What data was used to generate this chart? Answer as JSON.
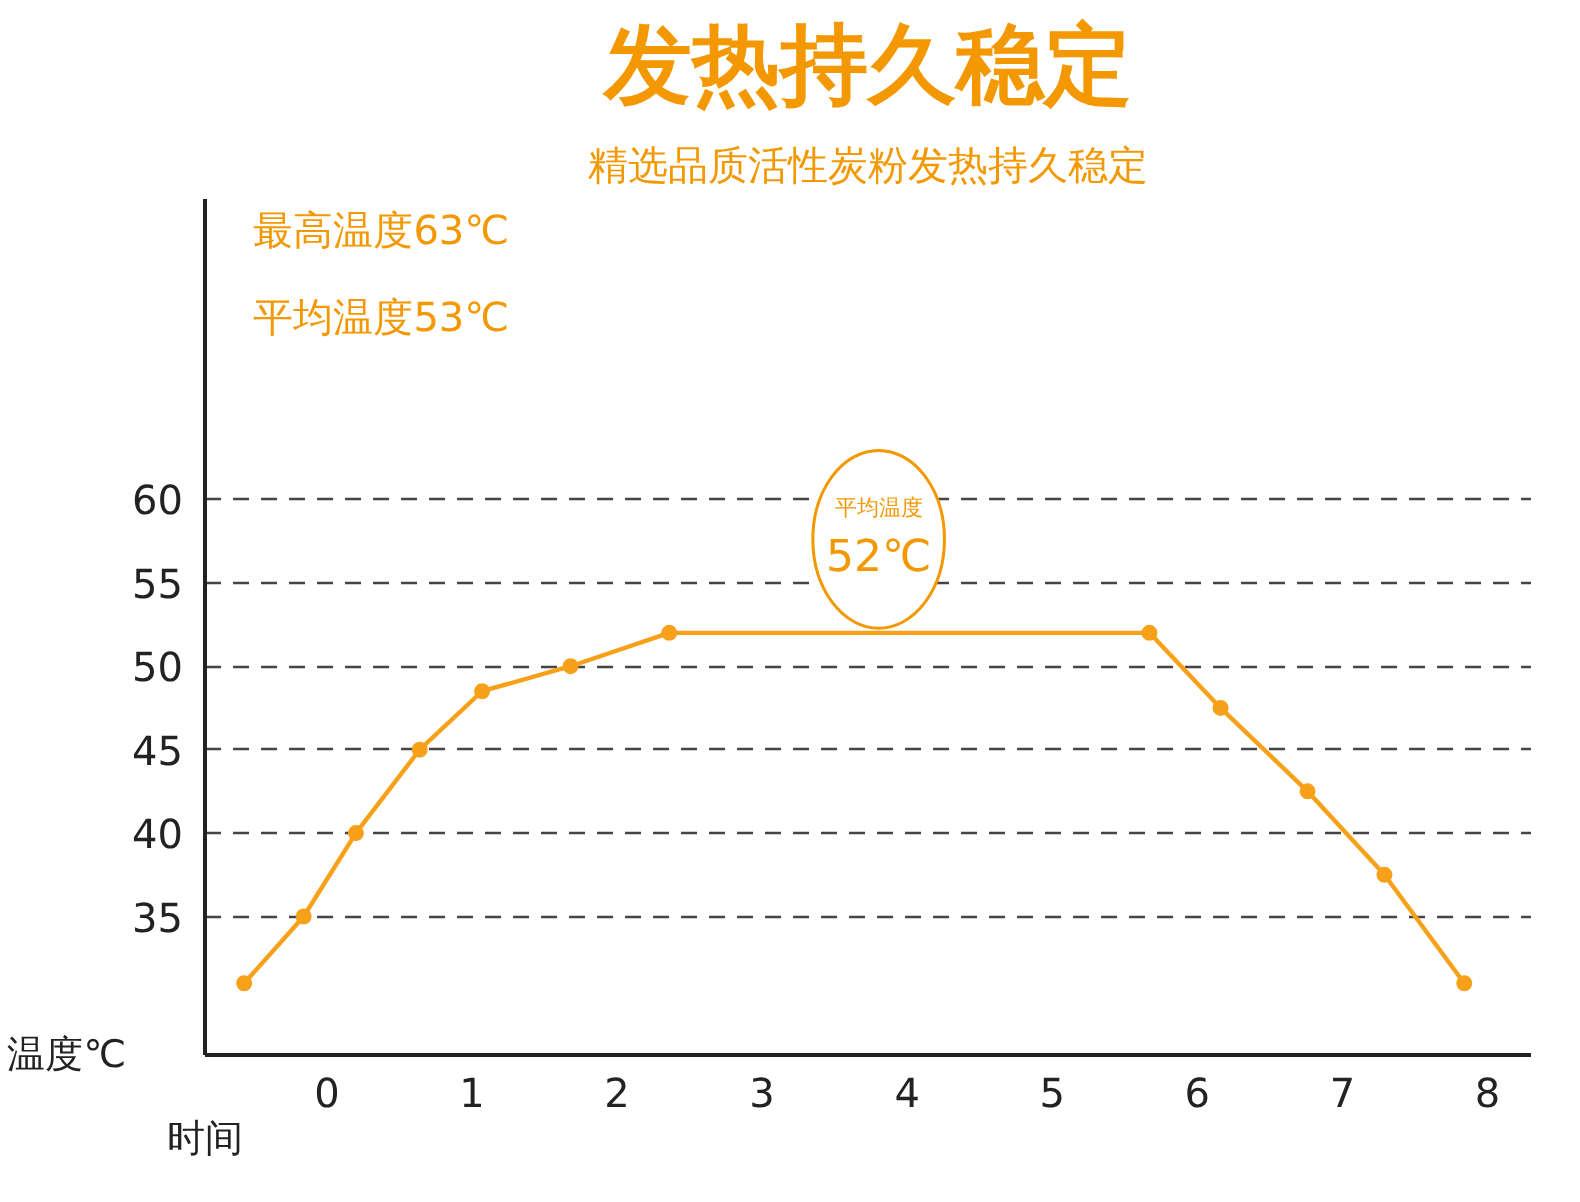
{
  "chart_data": {
    "type": "line",
    "title": "发热持久稳定",
    "subtitle": "精选品质活性炭粉发热持久稳定",
    "xlabel": "时间",
    "ylabel": "温度℃",
    "x": [
      -0.57,
      -0.16,
      0.2,
      0.64,
      1.07,
      1.68,
      2.36,
      5.67,
      6.16,
      6.76,
      7.29,
      7.84
    ],
    "series": [
      {
        "color": "#f7a11a",
        "values": [
          31,
          35,
          40,
          45,
          48.5,
          50,
          52,
          52,
          47.5,
          42.5,
          37.5,
          31
        ]
      }
    ],
    "xlim": [
      -0.84,
      8.3
    ],
    "ylim": [
      26.7,
      78
    ],
    "xticks": [
      0,
      1,
      2,
      3,
      4,
      5,
      6,
      7,
      8
    ],
    "yticks": [
      35,
      40,
      45,
      50,
      55,
      60
    ],
    "grid": "y",
    "marker": "circle",
    "line_style": "solid",
    "annotations": [
      "最高温度63℃",
      "平均温度53℃",
      "平均温度",
      "52℃"
    ]
  }
}
